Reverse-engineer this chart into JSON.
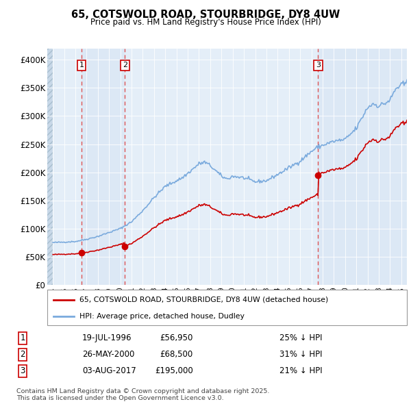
{
  "title": "65, COTSWOLD ROAD, STOURBRIDGE, DY8 4UW",
  "subtitle": "Price paid vs. HM Land Registry's House Price Index (HPI)",
  "legend_line1": "65, COTSWOLD ROAD, STOURBRIDGE, DY8 4UW (detached house)",
  "legend_line2": "HPI: Average price, detached house, Dudley",
  "footer_line1": "Contains HM Land Registry data © Crown copyright and database right 2025.",
  "footer_line2": "This data is licensed under the Open Government Licence v3.0.",
  "sales": [
    {
      "num": 1,
      "date": "19-JUL-1996",
      "price": 56950,
      "year": 1996.54,
      "pct": "25% ↓ HPI"
    },
    {
      "num": 2,
      "date": "26-MAY-2000",
      "price": 68500,
      "year": 2000.4,
      "pct": "31% ↓ HPI"
    },
    {
      "num": 3,
      "date": "03-AUG-2017",
      "price": 195000,
      "year": 2017.59,
      "pct": "21% ↓ HPI"
    }
  ],
  "ylim": [
    0,
    420000
  ],
  "xlim": [
    1993.5,
    2025.5
  ],
  "yticks": [
    0,
    50000,
    100000,
    150000,
    200000,
    250000,
    300000,
    350000,
    400000
  ],
  "ytick_labels": [
    "£0",
    "£50K",
    "£100K",
    "£150K",
    "£200K",
    "£250K",
    "£300K",
    "£350K",
    "£400K"
  ],
  "bg_color": "#dce9f5",
  "hatch_color": "#c8d8e8",
  "grid_color": "#ffffff",
  "red_line_color": "#cc0000",
  "blue_line_color": "#7aaadd",
  "sale_marker_color": "#cc0000",
  "sale_vline_color": "#dd5555",
  "box_edge_color": "#cc0000",
  "sale_bg_color": "#e8f0f8"
}
